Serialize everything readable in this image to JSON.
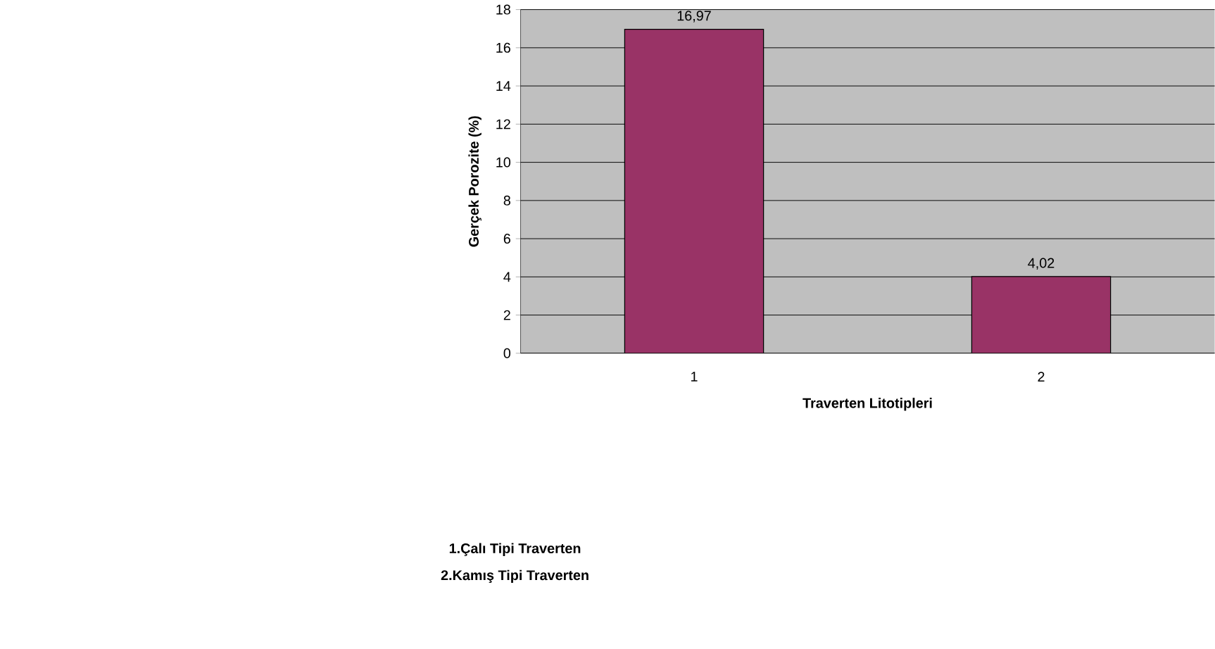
{
  "chart_data": {
    "type": "bar",
    "categories": [
      "1",
      "2"
    ],
    "values": [
      16.97,
      4.02
    ],
    "color": "#993366",
    "value_labels": [
      "16,97",
      "4,02"
    ],
    "ylabel": "Gerçek Porozite (%)",
    "xlabel": "Traverten Litotipleri",
    "annotations": [
      "1.Çalı Tipi Traverten",
      "2.Kamış Tipi Traverten"
    ],
    "ylim": [
      0,
      18
    ],
    "yticks": [
      0,
      2,
      4,
      6,
      8,
      10,
      12,
      14,
      16,
      18
    ],
    "grid": "y"
  }
}
